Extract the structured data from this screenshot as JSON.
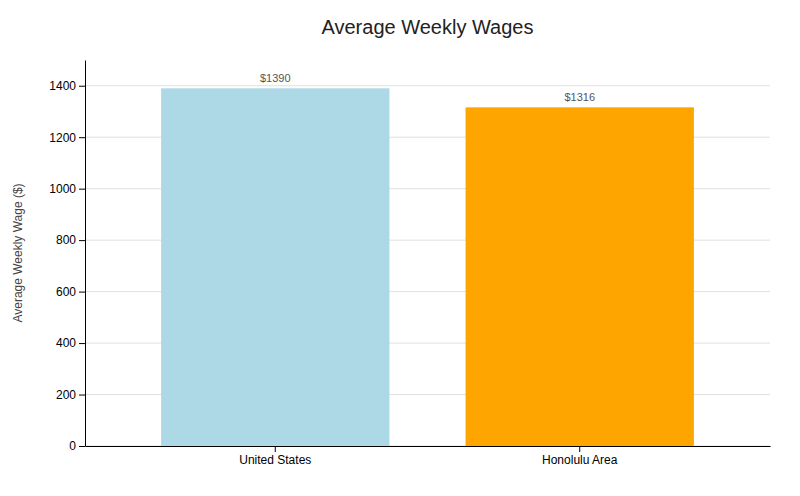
{
  "chart_data": {
    "type": "bar",
    "title": "Average Weekly Wages",
    "categories": [
      "United States",
      "Honolulu Area"
    ],
    "values": [
      1390,
      1316
    ],
    "value_labels": [
      "$1390",
      "$1316"
    ],
    "data_labels": true,
    "colors": [
      "#add8e6",
      "#FFA500"
    ],
    "ylabel": "Average Weekly Wage ($)",
    "ylim": [
      0,
      1500
    ],
    "yticks": [
      0,
      200,
      400,
      600,
      800,
      1000,
      1200,
      1400
    ],
    "grid": true
  }
}
